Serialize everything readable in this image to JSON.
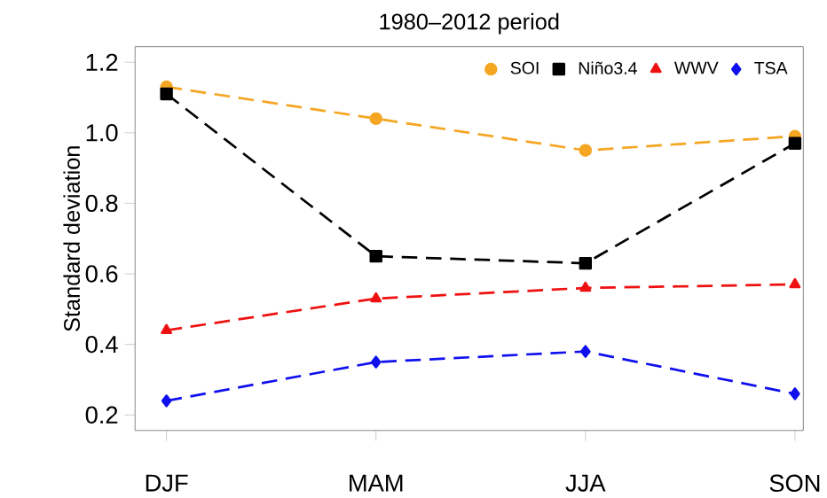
{
  "chart_data": {
    "type": "line",
    "title": "1980–2012 period",
    "ylabel": "Standard deviation",
    "categories": [
      "DJF",
      "MAM",
      "JJA",
      "SON"
    ],
    "series": [
      {
        "name": "SOI",
        "color": "#f5a623",
        "marker": "circle",
        "values": [
          1.13,
          1.04,
          0.95,
          0.99
        ]
      },
      {
        "name": "Niño3.4",
        "color": "#000000",
        "marker": "square",
        "values": [
          1.11,
          0.65,
          0.63,
          0.97
        ]
      },
      {
        "name": "WWV",
        "color": "#ee1111",
        "marker": "triangle",
        "values": [
          0.44,
          0.53,
          0.56,
          0.57
        ]
      },
      {
        "name": "TSA",
        "color": "#1010ee",
        "marker": "diamond",
        "values": [
          0.24,
          0.35,
          0.38,
          0.26
        ]
      }
    ],
    "ylim": [
      0.156,
      1.244
    ],
    "yticks": [
      0.2,
      0.4,
      0.6,
      0.8,
      {
        "value": 1.0,
        "label": "1.0"
      },
      1.2
    ],
    "line_style": "dashed",
    "grid": false,
    "legend": "top right"
  }
}
